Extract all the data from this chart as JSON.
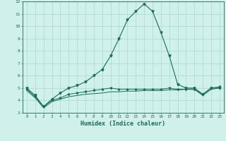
{
  "xlabel": "Humidex (Indice chaleur)",
  "x": [
    0,
    1,
    2,
    3,
    4,
    5,
    6,
    7,
    8,
    9,
    10,
    11,
    12,
    13,
    14,
    15,
    16,
    17,
    18,
    19,
    20,
    21,
    22,
    23
  ],
  "line1": [
    5.0,
    4.4,
    3.5,
    4.1,
    4.6,
    5.0,
    5.2,
    5.5,
    6.0,
    6.5,
    7.6,
    9.0,
    10.5,
    11.2,
    11.8,
    11.2,
    9.5,
    7.6,
    5.3,
    5.0,
    5.0,
    4.5,
    5.0,
    5.0
  ],
  "line2": [
    4.9,
    4.3,
    3.5,
    4.0,
    4.2,
    4.5,
    4.6,
    4.7,
    4.8,
    4.9,
    5.0,
    4.9,
    4.9,
    4.9,
    4.9,
    4.9,
    4.9,
    5.0,
    4.9,
    4.9,
    4.9,
    4.5,
    5.0,
    5.1
  ],
  "line3": [
    4.8,
    4.2,
    3.4,
    3.9,
    4.1,
    4.3,
    4.4,
    4.5,
    4.55,
    4.6,
    4.7,
    4.7,
    4.75,
    4.75,
    4.8,
    4.8,
    4.8,
    4.85,
    4.85,
    4.9,
    4.9,
    4.4,
    4.9,
    5.0
  ],
  "ylim": [
    3,
    12
  ],
  "yticks": [
    3,
    4,
    5,
    6,
    7,
    8,
    9,
    10,
    11,
    12
  ],
  "line_color": "#1a6b5a",
  "bg_color": "#cff0eb",
  "grid_color": "#a8d8d0"
}
